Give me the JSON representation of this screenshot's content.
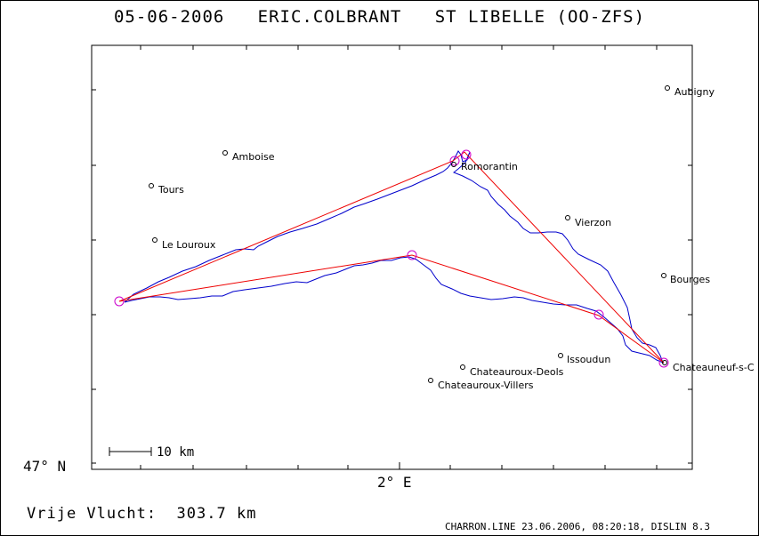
{
  "header": {
    "date": "05-06-2006",
    "pilot": "ERIC.COLBRANT",
    "glider": "ST LIBELLE (OO-ZFS)"
  },
  "axes": {
    "lat_label": "47° N",
    "lon_label": "2° E"
  },
  "scale": {
    "label": "10 km"
  },
  "towns": [
    {
      "name": "Aubigny"
    },
    {
      "name": "Amboise"
    },
    {
      "name": "Romorantin"
    },
    {
      "name": "Tours"
    },
    {
      "name": "Vierzon"
    },
    {
      "name": "Le Louroux"
    },
    {
      "name": "Bourges"
    },
    {
      "name": "Issoudun"
    },
    {
      "name": "Chateauroux-Deols"
    },
    {
      "name": "Chateauroux-Villers"
    },
    {
      "name": "Chateauneuf-s-C"
    }
  ],
  "flight": {
    "label": "Vrije Vlucht:",
    "distance": "303.7 km"
  },
  "footer": {
    "info": "CHARRON.LINE 23.06.2006, 08:20:18, DISLIN 8.3"
  },
  "colors": {
    "track": "#0000cc",
    "task": "#ee0000",
    "turnpoint": "#cc00cc"
  }
}
